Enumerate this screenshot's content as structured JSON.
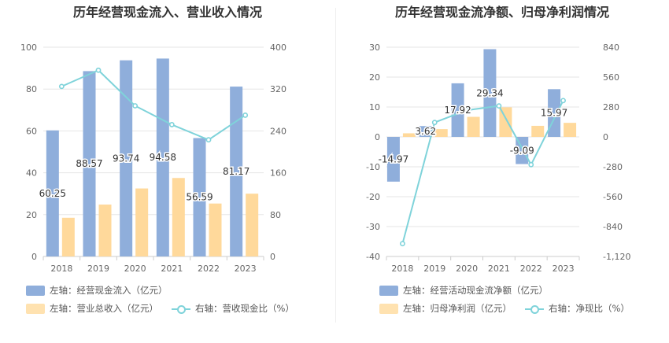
{
  "chart_data": [
    {
      "type": "bar",
      "title": "历年经营现金流入、营业收入情况",
      "categories": [
        "2018",
        "2019",
        "2020",
        "2021",
        "2022",
        "2023"
      ],
      "left_axis": {
        "ticks": [
          "0",
          "20",
          "40",
          "60",
          "80",
          "100"
        ],
        "ylim": [
          0,
          100
        ]
      },
      "right_axis": {
        "ticks": [
          "0",
          "80",
          "160",
          "240",
          "320",
          "400"
        ],
        "ylim": [
          0,
          400
        ]
      },
      "series": [
        {
          "name": "左轴：经营现金流入（亿元）",
          "type": "bar",
          "axis": "left",
          "color": "#8faedb",
          "values": [
            60.25,
            88.57,
            93.74,
            94.58,
            56.59,
            81.17
          ],
          "labels": [
            "60.25",
            "88.57",
            "93.74",
            "94.58",
            "56.59",
            "81.17"
          ]
        },
        {
          "name": "左轴：营业总收入（亿元）",
          "type": "bar",
          "axis": "left",
          "color": "#ffd99b",
          "values": [
            18.5,
            24.8,
            32.5,
            37.5,
            25.3,
            30.0
          ]
        },
        {
          "name": "右轴：营收现金比（%）",
          "type": "line",
          "axis": "right",
          "color": "#7fd3da",
          "values": [
            325,
            356,
            288,
            252,
            223,
            270
          ]
        }
      ],
      "grid": true,
      "legend_position": "bottom"
    },
    {
      "type": "bar",
      "title": "历年经营现金流净额、归母净利润情况",
      "categories": [
        "2018",
        "2019",
        "2020",
        "2021",
        "2022",
        "2023"
      ],
      "left_axis": {
        "ticks": [
          "-40",
          "-30",
          "-20",
          "-10",
          "0",
          "10",
          "20",
          "30"
        ],
        "ylim": [
          -40,
          30
        ]
      },
      "right_axis": {
        "ticks": [
          "-1,120",
          "-840",
          "-560",
          "-280",
          "0",
          "280",
          "560",
          "840"
        ],
        "ylim": [
          -1120,
          840
        ]
      },
      "series": [
        {
          "name": "左轴：经营活动现金流净额（亿元）",
          "type": "bar",
          "axis": "left",
          "color": "#8faedb",
          "values": [
            -14.97,
            3.62,
            17.92,
            29.34,
            -9.09,
            15.97
          ],
          "labels": [
            "-14.97",
            "3.62",
            "17.92",
            "29.34",
            "-9.09",
            "15.97"
          ]
        },
        {
          "name": "左轴：归母净利润（亿元）",
          "type": "bar",
          "axis": "left",
          "color": "#ffd99b",
          "values": [
            1.2,
            2.6,
            6.7,
            9.9,
            3.7,
            4.7
          ]
        },
        {
          "name": "右轴：净现比（%）",
          "type": "line",
          "axis": "right",
          "color": "#7fd3da",
          "values": [
            -1000,
            135,
            250,
            290,
            -260,
            340
          ]
        }
      ],
      "grid": true,
      "legend_position": "bottom"
    }
  ]
}
